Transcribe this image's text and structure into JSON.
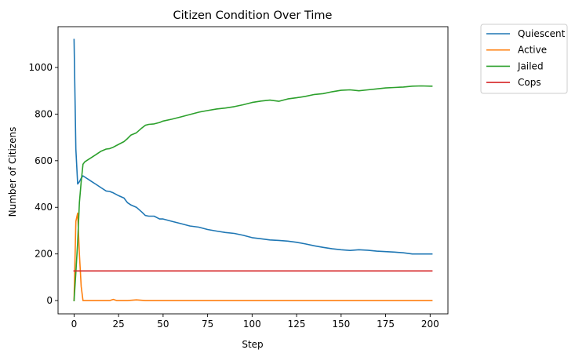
{
  "chart_data": {
    "type": "line",
    "title": "Citizen Condition Over Time",
    "xlabel": "Step",
    "ylabel": "Number of Citizens",
    "xlim": [
      -9,
      210
    ],
    "ylim": [
      -57,
      1175
    ],
    "xticks": [
      0,
      25,
      50,
      75,
      100,
      125,
      150,
      175,
      200
    ],
    "yticks": [
      0,
      200,
      400,
      600,
      800,
      1000
    ],
    "grid": false,
    "legend_placement": "outside-top-right",
    "series": [
      {
        "name": "Quiescent",
        "color": "#1f77b4",
        "x": [
          0,
          1,
          2,
          3,
          4,
          5,
          6,
          8,
          10,
          12,
          15,
          18,
          20,
          22,
          25,
          28,
          30,
          32,
          35,
          38,
          40,
          42,
          45,
          48,
          50,
          55,
          60,
          65,
          70,
          75,
          80,
          85,
          90,
          95,
          100,
          105,
          110,
          115,
          120,
          125,
          130,
          135,
          140,
          145,
          150,
          155,
          160,
          165,
          170,
          175,
          180,
          185,
          190,
          195,
          200,
          201
        ],
        "values": [
          1120,
          650,
          500,
          510,
          525,
          535,
          530,
          520,
          510,
          500,
          485,
          470,
          468,
          462,
          450,
          440,
          420,
          410,
          400,
          380,
          365,
          362,
          362,
          350,
          350,
          340,
          330,
          320,
          315,
          305,
          298,
          292,
          288,
          280,
          270,
          265,
          260,
          258,
          255,
          250,
          243,
          235,
          228,
          222,
          218,
          215,
          218,
          216,
          212,
          210,
          208,
          205,
          200,
          200,
          200,
          200
        ]
      },
      {
        "name": "Active",
        "color": "#ff7f0e",
        "x": [
          0,
          1,
          2,
          3,
          4,
          5,
          10,
          20,
          22,
          24,
          30,
          35,
          40,
          50,
          100,
          150,
          201
        ],
        "values": [
          0,
          340,
          375,
          200,
          60,
          0,
          0,
          0,
          5,
          0,
          0,
          3,
          0,
          0,
          0,
          0,
          0
        ]
      },
      {
        "name": "Jailed",
        "color": "#2ca02c",
        "x": [
          0,
          1,
          2,
          3,
          4,
          5,
          6,
          8,
          10,
          12,
          15,
          18,
          20,
          22,
          25,
          28,
          30,
          32,
          35,
          38,
          40,
          42,
          45,
          48,
          50,
          55,
          60,
          65,
          70,
          75,
          80,
          85,
          90,
          95,
          100,
          105,
          110,
          115,
          120,
          125,
          130,
          135,
          140,
          145,
          150,
          155,
          160,
          165,
          170,
          175,
          180,
          185,
          190,
          195,
          200,
          201
        ],
        "values": [
          0,
          120,
          250,
          420,
          510,
          585,
          595,
          605,
          615,
          625,
          640,
          650,
          652,
          658,
          670,
          682,
          695,
          710,
          720,
          740,
          752,
          756,
          758,
          764,
          770,
          778,
          788,
          798,
          808,
          815,
          822,
          826,
          832,
          840,
          850,
          856,
          860,
          855,
          865,
          870,
          876,
          884,
          888,
          896,
          902,
          904,
          900,
          904,
          908,
          912,
          914,
          916,
          920,
          921,
          920,
          920
        ]
      },
      {
        "name": "Cops",
        "color": "#d62728",
        "x": [
          0,
          201
        ],
        "values": [
          127,
          127
        ]
      }
    ]
  }
}
